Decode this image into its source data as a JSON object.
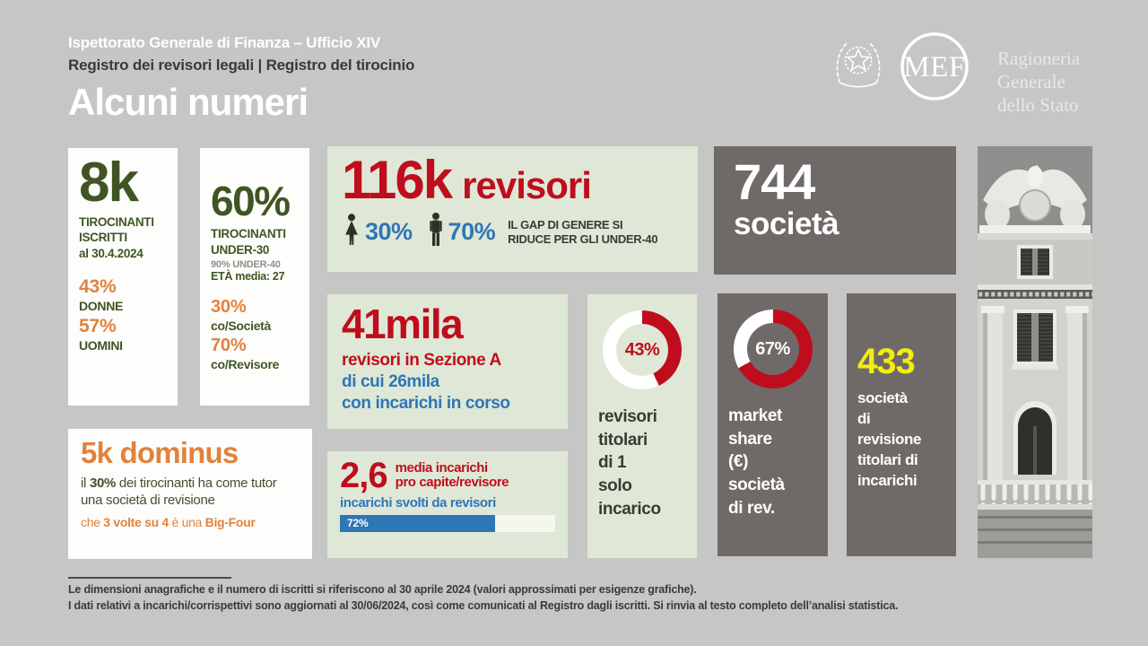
{
  "slide": {
    "subtitle1": "Ispettorato Generale di Finanza – Ufficio XIV",
    "subtitle2": "Registro dei revisori legali | Registro del tirocinio",
    "title": "Alcuni numeri"
  },
  "brand": {
    "mef": "MEF",
    "rgs": "Ragioneria\nGenerale\ndello Stato"
  },
  "colors": {
    "background": "#c6c6c5",
    "card_green": "#dfe8d6",
    "card_gray": "#6f6a68",
    "card_white": "#ffffff",
    "red": "#c00d1d",
    "orange": "#e2823c",
    "olive_green": "#3f5523",
    "blue": "#2e76b6",
    "yellow": "#f2ed0f",
    "dark_text": "#3a3a3a"
  },
  "cards": {
    "tirocinanti": {
      "big": "8k",
      "label": "TIROCINANTI\nISCRITTI\nal 30.4.2024",
      "pct_donne": "43%",
      "donne": "DONNE",
      "pct_uomini": "57%",
      "uomini": "UOMINI"
    },
    "under30": {
      "big": "60%",
      "label": "TIROCINANTI\nUNDER-30",
      "sub1": "90% UNDER-40",
      "sub2": "ETÀ media: 27",
      "pct_societa": "30%",
      "societa": "co/Società",
      "pct_revisore": "70%",
      "revisore": "co/Revisore"
    },
    "revisori": {
      "big": "116k",
      "word": "revisori",
      "female_pct": "30%",
      "male_pct": "70%",
      "gap": "IL GAP DI GENERE SI\nRIDUCE PER GLI UNDER-40"
    },
    "societa744": {
      "big": "744",
      "word": "società"
    },
    "sezioneA": {
      "big": "41mila",
      "line1": "revisori in Sezione A",
      "line2": "di cui 26mila",
      "line3": "con incarichi in corso"
    },
    "media": {
      "big": "2,6",
      "sub": "media incarichi\npro capite/revisore",
      "bar_label": "incarichi svolti da revisori",
      "bar": {
        "pct": 72,
        "label": "72%",
        "fill_color": "#2e76b6",
        "track_color": "#f6f6f0"
      }
    },
    "dominus": {
      "big": "5k dominus",
      "body_pre": "il ",
      "body_bold": "30%",
      "body_post": " dei tirocinanti ha come tutor una società di revisione",
      "foot_pre": "che ",
      "foot_bold1": "3 volte su 4",
      "foot_mid": " è una ",
      "foot_bold2": "Big-Four"
    },
    "donut43": {
      "value": "43%",
      "pct": 43,
      "arc_color": "#c00d1d",
      "rest_color": "#ffffff",
      "label": "revisori\ntitolari\ndi 1\nsolo\nincarico"
    },
    "donut67": {
      "value": "67%",
      "pct": 67,
      "arc_color": "#c00d1d",
      "rest_color": "#ffffff",
      "label": "market\nshare\n(€)\nsocietà\ndi rev."
    },
    "societa433": {
      "big": "433",
      "label": "società\ndi\nrevisione\ntitolari di\nincarichi"
    }
  },
  "footer": {
    "line1": "Le dimensioni anagrafiche e il numero di iscritti si riferiscono al 30 aprile 2024 (valori approssimati per esigenze grafiche).",
    "line2": "I dati relativi a incarichi/corrispettivi sono aggiornati al 30/06/2024, così come comunicati al Registro dagli iscritti. Si rinvia al testo completo dell’analisi statistica."
  },
  "chart_data": [
    {
      "type": "pie",
      "title": "revisori titolari di 1 solo incarico",
      "labels": [
        "1 solo incarico",
        "resto"
      ],
      "values": [
        43,
        57
      ],
      "donut": true,
      "colors": [
        "#c00d1d",
        "#ffffff"
      ],
      "center_label": "43%"
    },
    {
      "type": "pie",
      "title": "market share (€) società di rev.",
      "labels": [
        "market share società di revisione",
        "resto"
      ],
      "values": [
        67,
        33
      ],
      "donut": true,
      "colors": [
        "#c00d1d",
        "#ffffff"
      ],
      "center_label": "67%"
    },
    {
      "type": "pie",
      "title": "116k revisori – ripartizione di genere",
      "labels": [
        "donne",
        "uomini"
      ],
      "values": [
        30,
        70
      ],
      "colors": [
        "#2e76b6",
        "#2e76b6"
      ]
    },
    {
      "type": "bar",
      "title": "incarichi svolti da revisori",
      "categories": [
        "incarichi svolti da revisori"
      ],
      "values": [
        72
      ],
      "unit": "%",
      "xlim": [
        0,
        100
      ],
      "bar_color": "#2e76b6"
    }
  ]
}
